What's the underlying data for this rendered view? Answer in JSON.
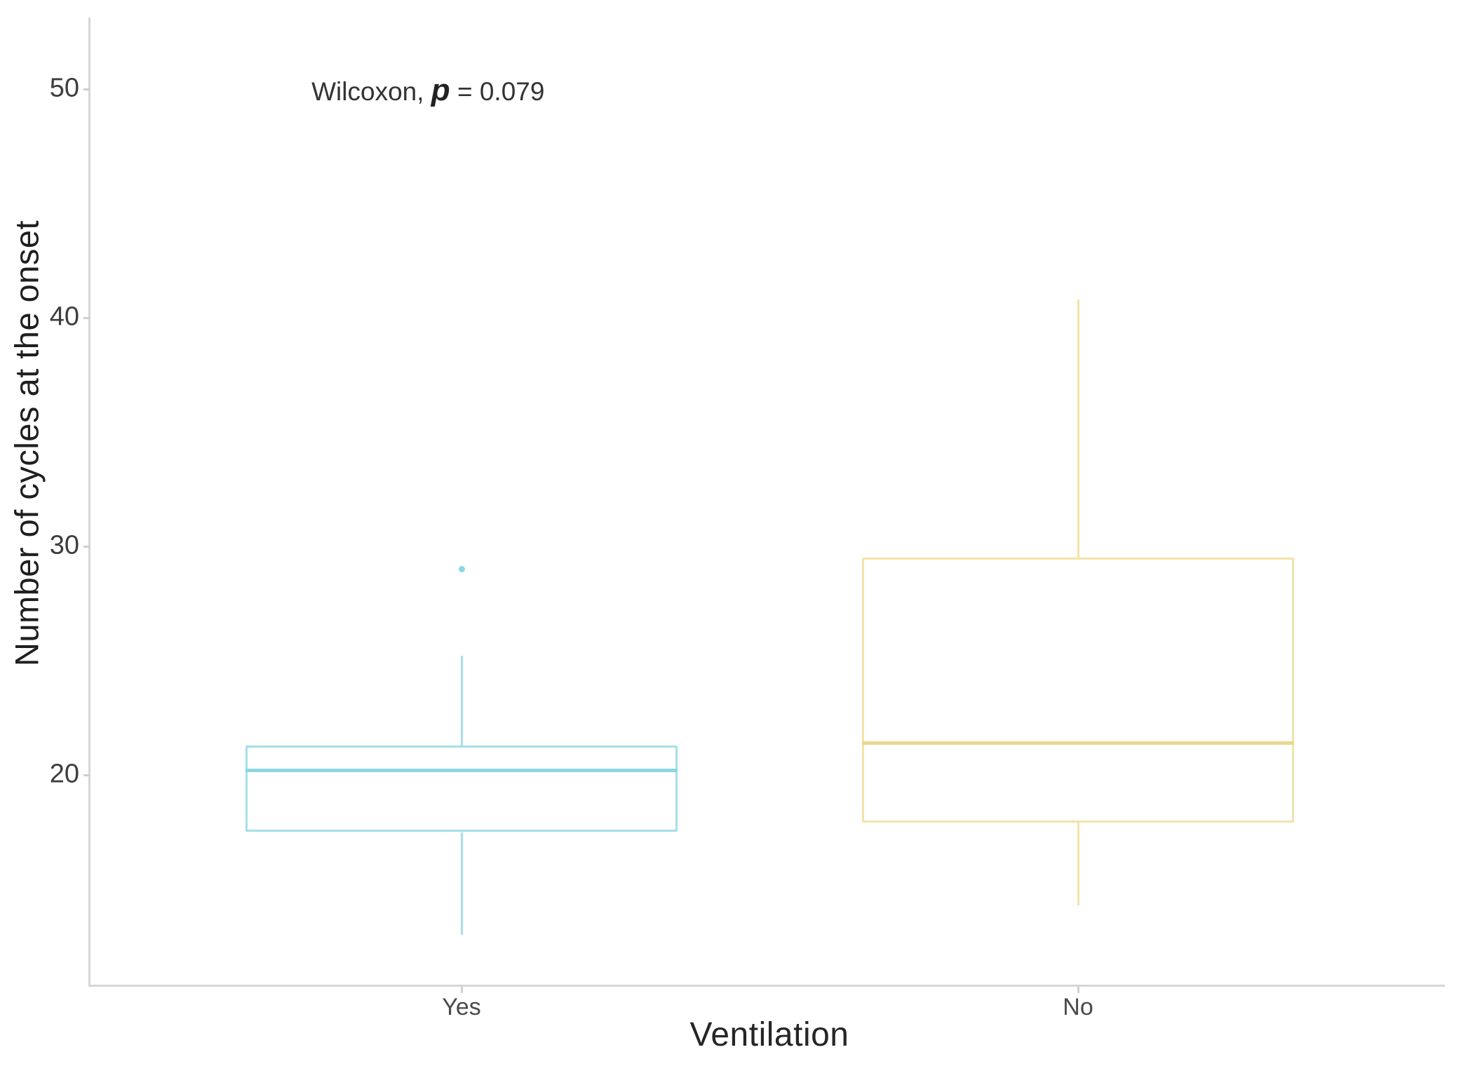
{
  "figure": {
    "annotation": {
      "test_label": "Wilcoxon, ",
      "p_symbol": "p",
      "p_value_text": " = 0.079"
    },
    "x_axis_title": "Ventilation",
    "y_axis_title": "Number of cycles at the onset"
  },
  "chart_data": {
    "type": "boxplot",
    "title": "",
    "xlabel": "Ventilation",
    "ylabel": "Number of cycles at the onset",
    "categories": [
      "Yes",
      "No"
    ],
    "series": [
      {
        "name": "Yes",
        "color": "#a5dfe9",
        "median_color": "#8bd7e2",
        "whisker_low": 13.0,
        "q1": 17.5,
        "median": 20.2,
        "q3": 21.3,
        "whisker_high": 25.2,
        "outliers": [
          29.0
        ]
      },
      {
        "name": "No",
        "color": "#f2e3aa",
        "median_color": "#ecd78f",
        "whisker_low": 14.3,
        "q1": 17.9,
        "median": 21.4,
        "q3": 29.5,
        "whisker_high": 40.8,
        "outliers": []
      }
    ],
    "y_ticks": [
      20,
      30,
      40,
      50
    ],
    "ylim": [
      10.8,
      53
    ],
    "grid": false,
    "legend": "none",
    "annotation": "Wilcoxon, p = 0.079"
  }
}
